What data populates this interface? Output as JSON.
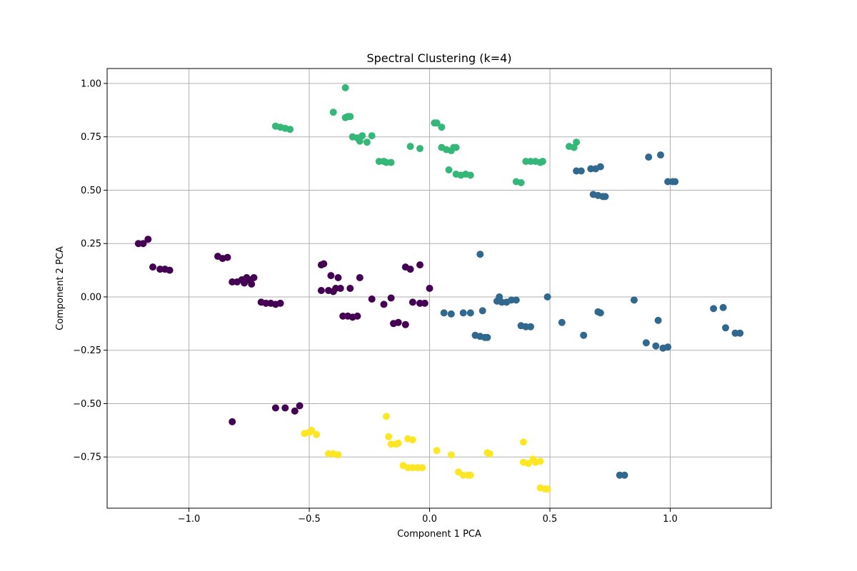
{
  "chart_data": {
    "type": "scatter",
    "title": "Spectral Clustering (k=4)",
    "xlabel": "Component 1 PCA",
    "ylabel": "Component 2 PCA",
    "xlim": [
      -1.34,
      1.42
    ],
    "ylim": [
      -0.99,
      1.07
    ],
    "xticks": [
      -1.0,
      -0.5,
      0.0,
      0.5,
      1.0
    ],
    "xtick_labels": [
      "−1.0",
      "−0.5",
      "0.0",
      "0.5",
      "1.0"
    ],
    "yticks": [
      -0.75,
      -0.5,
      -0.25,
      0.0,
      0.25,
      0.5,
      0.75,
      1.0
    ],
    "ytick_labels": [
      "−0.75",
      "−0.50",
      "−0.25",
      "0.00",
      "0.25",
      "0.50",
      "0.75",
      "1.00"
    ],
    "grid": true,
    "series": [
      {
        "color": "#440154",
        "points": [
          [
            -1.21,
            0.25
          ],
          [
            -1.19,
            0.25
          ],
          [
            -1.17,
            0.27
          ],
          [
            -1.15,
            0.14
          ],
          [
            -1.12,
            0.13
          ],
          [
            -1.1,
            0.13
          ],
          [
            -1.08,
            0.125
          ],
          [
            -0.88,
            0.19
          ],
          [
            -0.86,
            0.18
          ],
          [
            -0.84,
            0.185
          ],
          [
            -0.82,
            0.07
          ],
          [
            -0.8,
            0.07
          ],
          [
            -0.78,
            0.08
          ],
          [
            -0.77,
            0.065
          ],
          [
            -0.76,
            0.09
          ],
          [
            -0.75,
            0.08
          ],
          [
            -0.74,
            0.06
          ],
          [
            -0.73,
            0.09
          ],
          [
            -0.7,
            -0.025
          ],
          [
            -0.68,
            -0.03
          ],
          [
            -0.66,
            -0.03
          ],
          [
            -0.64,
            -0.035
          ],
          [
            -0.62,
            -0.03
          ],
          [
            -0.45,
            0.15
          ],
          [
            -0.44,
            0.155
          ],
          [
            -0.45,
            0.03
          ],
          [
            -0.42,
            0.03
          ],
          [
            -0.4,
            0.025
          ],
          [
            -0.41,
            0.1
          ],
          [
            -0.38,
            0.09
          ],
          [
            -0.39,
            0.04
          ],
          [
            -0.37,
            0.04
          ],
          [
            -0.33,
            0.04
          ],
          [
            -0.29,
            0.09
          ],
          [
            -0.36,
            -0.09
          ],
          [
            -0.34,
            -0.09
          ],
          [
            -0.32,
            -0.095
          ],
          [
            -0.3,
            -0.09
          ],
          [
            -0.24,
            -0.01
          ],
          [
            -0.19,
            -0.035
          ],
          [
            -0.16,
            -0.005
          ],
          [
            -0.15,
            -0.125
          ],
          [
            -0.13,
            -0.12
          ],
          [
            -0.1,
            -0.13
          ],
          [
            -0.1,
            0.14
          ],
          [
            -0.08,
            0.13
          ],
          [
            -0.04,
            0.15
          ],
          [
            -0.07,
            -0.025
          ],
          [
            -0.04,
            -0.03
          ],
          [
            -0.02,
            -0.03
          ],
          [
            0.0,
            0.04
          ],
          [
            -0.82,
            -0.585
          ],
          [
            -0.64,
            -0.52
          ],
          [
            -0.6,
            -0.52
          ],
          [
            -0.56,
            -0.535
          ],
          [
            -0.54,
            -0.51
          ]
        ]
      },
      {
        "color": "#31688e",
        "points": [
          [
            0.21,
            0.2
          ],
          [
            0.06,
            -0.075
          ],
          [
            0.09,
            -0.08
          ],
          [
            0.14,
            -0.075
          ],
          [
            0.17,
            -0.075
          ],
          [
            0.22,
            -0.065
          ],
          [
            0.19,
            -0.18
          ],
          [
            0.21,
            -0.185
          ],
          [
            0.23,
            -0.19
          ],
          [
            0.24,
            -0.19
          ],
          [
            0.28,
            -0.02
          ],
          [
            0.3,
            -0.025
          ],
          [
            0.32,
            -0.025
          ],
          [
            0.34,
            -0.015
          ],
          [
            0.36,
            -0.015
          ],
          [
            0.29,
            0.0
          ],
          [
            0.38,
            -0.135
          ],
          [
            0.4,
            -0.14
          ],
          [
            0.42,
            -0.14
          ],
          [
            0.49,
            0.0
          ],
          [
            0.55,
            -0.12
          ],
          [
            0.64,
            -0.18
          ],
          [
            0.7,
            -0.07
          ],
          [
            0.71,
            -0.075
          ],
          [
            0.85,
            -0.015
          ],
          [
            0.9,
            -0.215
          ],
          [
            0.94,
            -0.23
          ],
          [
            0.95,
            -0.11
          ],
          [
            0.97,
            -0.24
          ],
          [
            0.99,
            -0.235
          ],
          [
            0.61,
            0.59
          ],
          [
            0.63,
            0.59
          ],
          [
            0.67,
            0.6
          ],
          [
            0.69,
            0.6
          ],
          [
            0.71,
            0.61
          ],
          [
            0.68,
            0.48
          ],
          [
            0.7,
            0.475
          ],
          [
            0.72,
            0.47
          ],
          [
            0.73,
            0.47
          ],
          [
            0.91,
            0.655
          ],
          [
            0.96,
            0.665
          ],
          [
            0.99,
            0.54
          ],
          [
            1.01,
            0.54
          ],
          [
            1.02,
            0.54
          ],
          [
            1.18,
            -0.055
          ],
          [
            1.22,
            -0.05
          ],
          [
            1.23,
            -0.145
          ],
          [
            1.27,
            -0.17
          ],
          [
            1.29,
            -0.17
          ],
          [
            0.79,
            -0.835
          ],
          [
            0.81,
            -0.835
          ]
        ]
      },
      {
        "color": "#35b779",
        "points": [
          [
            -0.35,
            0.98
          ],
          [
            -0.4,
            0.865
          ],
          [
            -0.35,
            0.84
          ],
          [
            -0.34,
            0.845
          ],
          [
            -0.33,
            0.845
          ],
          [
            -0.64,
            0.8
          ],
          [
            -0.62,
            0.795
          ],
          [
            -0.6,
            0.79
          ],
          [
            -0.58,
            0.785
          ],
          [
            -0.32,
            0.75
          ],
          [
            -0.3,
            0.745
          ],
          [
            -0.28,
            0.755
          ],
          [
            -0.29,
            0.73
          ],
          [
            -0.26,
            0.725
          ],
          [
            -0.24,
            0.755
          ],
          [
            -0.21,
            0.635
          ],
          [
            -0.19,
            0.635
          ],
          [
            -0.18,
            0.63
          ],
          [
            -0.16,
            0.63
          ],
          [
            -0.08,
            0.705
          ],
          [
            -0.04,
            0.695
          ],
          [
            0.02,
            0.815
          ],
          [
            0.03,
            0.815
          ],
          [
            0.05,
            0.795
          ],
          [
            0.05,
            0.7
          ],
          [
            0.07,
            0.69
          ],
          [
            0.09,
            0.685
          ],
          [
            0.1,
            0.7
          ],
          [
            0.11,
            0.7
          ],
          [
            0.08,
            0.595
          ],
          [
            0.11,
            0.575
          ],
          [
            0.13,
            0.57
          ],
          [
            0.15,
            0.575
          ],
          [
            0.17,
            0.57
          ],
          [
            0.36,
            0.54
          ],
          [
            0.38,
            0.535
          ],
          [
            0.4,
            0.635
          ],
          [
            0.42,
            0.635
          ],
          [
            0.44,
            0.635
          ],
          [
            0.46,
            0.63
          ],
          [
            0.47,
            0.635
          ],
          [
            0.58,
            0.705
          ],
          [
            0.6,
            0.7
          ],
          [
            0.61,
            0.725
          ]
        ]
      },
      {
        "color": "#fde725",
        "points": [
          [
            -0.52,
            -0.64
          ],
          [
            -0.5,
            -0.635
          ],
          [
            -0.49,
            -0.625
          ],
          [
            -0.47,
            -0.645
          ],
          [
            -0.42,
            -0.735
          ],
          [
            -0.4,
            -0.735
          ],
          [
            -0.38,
            -0.74
          ],
          [
            -0.18,
            -0.56
          ],
          [
            -0.17,
            -0.655
          ],
          [
            -0.16,
            -0.69
          ],
          [
            -0.14,
            -0.69
          ],
          [
            -0.13,
            -0.685
          ],
          [
            -0.11,
            -0.79
          ],
          [
            -0.09,
            -0.8
          ],
          [
            -0.07,
            -0.8
          ],
          [
            -0.05,
            -0.8
          ],
          [
            -0.03,
            -0.8
          ],
          [
            -0.09,
            -0.665
          ],
          [
            -0.07,
            -0.67
          ],
          [
            0.03,
            -0.72
          ],
          [
            0.09,
            -0.74
          ],
          [
            0.12,
            -0.82
          ],
          [
            0.14,
            -0.835
          ],
          [
            0.16,
            -0.835
          ],
          [
            0.17,
            -0.835
          ],
          [
            0.24,
            -0.73
          ],
          [
            0.25,
            -0.735
          ],
          [
            0.39,
            -0.68
          ],
          [
            0.39,
            -0.775
          ],
          [
            0.41,
            -0.78
          ],
          [
            0.43,
            -0.76
          ],
          [
            0.44,
            -0.775
          ],
          [
            0.46,
            -0.77
          ],
          [
            0.46,
            -0.895
          ],
          [
            0.48,
            -0.9
          ],
          [
            0.49,
            -0.9
          ]
        ]
      }
    ]
  }
}
